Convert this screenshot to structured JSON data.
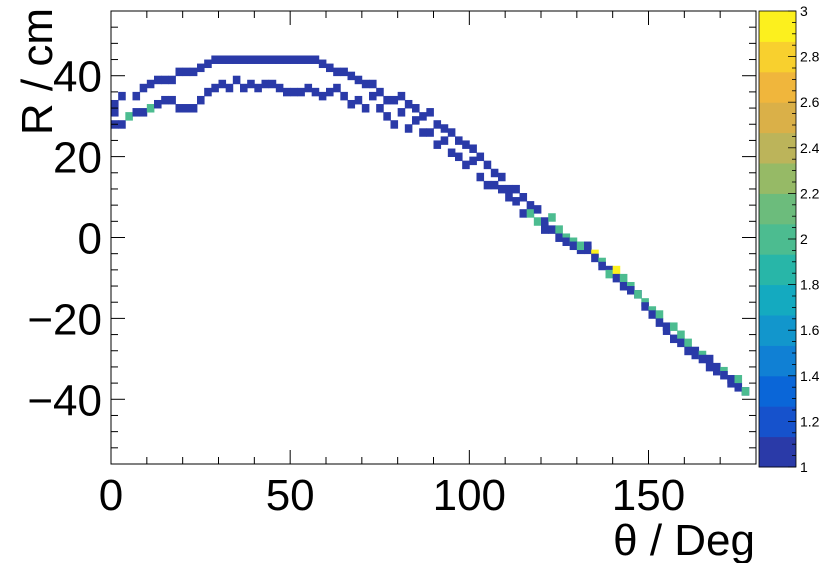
{
  "chart_data": {
    "type": "heatmap",
    "title": "",
    "xlabel": "θ / Deg",
    "ylabel": "R / cm",
    "xlim": [
      0,
      180
    ],
    "ylim": [
      -56,
      56
    ],
    "x_ticks": [
      0,
      50,
      100,
      150
    ],
    "y_ticks": [
      -40,
      -20,
      0,
      20,
      40
    ],
    "colorbar": {
      "range": [
        1,
        3
      ],
      "ticks": [
        "1",
        "1.2",
        "1.4",
        "1.6",
        "1.8",
        "2",
        "2.2",
        "2.4",
        "2.6",
        "2.8",
        "3"
      ],
      "palette": [
        "#2a3aa8",
        "#1652cc",
        "#0a66d8",
        "#1080d4",
        "#1296cc",
        "#14aac0",
        "#28b6a8",
        "#4cbc90",
        "#6cbc7c",
        "#96ba66",
        "#bcb45a",
        "#dab048",
        "#f0b63c",
        "#f8d02e",
        "#fcf01e"
      ]
    },
    "bins": [
      [
        1,
        33,
        1
      ],
      [
        1,
        31,
        1
      ],
      [
        1,
        28,
        1
      ],
      [
        3,
        28,
        1
      ],
      [
        3,
        35,
        1
      ],
      [
        5,
        30,
        2
      ],
      [
        7,
        35,
        1
      ],
      [
        7,
        31,
        1
      ],
      [
        9,
        37,
        1
      ],
      [
        9,
        31,
        1
      ],
      [
        11,
        32,
        2
      ],
      [
        11,
        38,
        1
      ],
      [
        13,
        39,
        1
      ],
      [
        13,
        33,
        1
      ],
      [
        15,
        39,
        1
      ],
      [
        15,
        34,
        1
      ],
      [
        17,
        39,
        1
      ],
      [
        17,
        34,
        1
      ],
      [
        19,
        41,
        1
      ],
      [
        19,
        32,
        1
      ],
      [
        21,
        41,
        1
      ],
      [
        21,
        32,
        1
      ],
      [
        23,
        41,
        1
      ],
      [
        23,
        32,
        1
      ],
      [
        25,
        42,
        1
      ],
      [
        25,
        34,
        1
      ],
      [
        27,
        43,
        1
      ],
      [
        27,
        36,
        1
      ],
      [
        29,
        44,
        1
      ],
      [
        29,
        37,
        1
      ],
      [
        31,
        44,
        1
      ],
      [
        31,
        38,
        1
      ],
      [
        33,
        44,
        1
      ],
      [
        33,
        37,
        1
      ],
      [
        35,
        44,
        1
      ],
      [
        35,
        39,
        1
      ],
      [
        37,
        44,
        1
      ],
      [
        37,
        37,
        1
      ],
      [
        39,
        44,
        1
      ],
      [
        39,
        38,
        1
      ],
      [
        41,
        44,
        1
      ],
      [
        41,
        37,
        1
      ],
      [
        43,
        44,
        1
      ],
      [
        43,
        38,
        1
      ],
      [
        45,
        44,
        1
      ],
      [
        45,
        38,
        1
      ],
      [
        47,
        44,
        1
      ],
      [
        47,
        37,
        1
      ],
      [
        49,
        44,
        1
      ],
      [
        49,
        36,
        1
      ],
      [
        51,
        44,
        1
      ],
      [
        51,
        36,
        1
      ],
      [
        53,
        44,
        1
      ],
      [
        53,
        36,
        1
      ],
      [
        55,
        44,
        1
      ],
      [
        55,
        37,
        1
      ],
      [
        57,
        44,
        1
      ],
      [
        57,
        36,
        1
      ],
      [
        59,
        43,
        1
      ],
      [
        59,
        35,
        1
      ],
      [
        61,
        42,
        1
      ],
      [
        61,
        36,
        1
      ],
      [
        63,
        41,
        1
      ],
      [
        63,
        37,
        1
      ],
      [
        65,
        41,
        1
      ],
      [
        65,
        35,
        1
      ],
      [
        67,
        40,
        1
      ],
      [
        67,
        33,
        1
      ],
      [
        69,
        39,
        1
      ],
      [
        69,
        34,
        1
      ],
      [
        71,
        38,
        1
      ],
      [
        71,
        32,
        1
      ],
      [
        73,
        38,
        1
      ],
      [
        73,
        35,
        1
      ],
      [
        75,
        36,
        1
      ],
      [
        75,
        32,
        1
      ],
      [
        77,
        34,
        1
      ],
      [
        77,
        30,
        1
      ],
      [
        79,
        34,
        1
      ],
      [
        79,
        28,
        1
      ],
      [
        81,
        35,
        1
      ],
      [
        81,
        31,
        1
      ],
      [
        83,
        33,
        1
      ],
      [
        83,
        27,
        1
      ],
      [
        85,
        32,
        1
      ],
      [
        85,
        29,
        1
      ],
      [
        87,
        30,
        1
      ],
      [
        87,
        26,
        1
      ],
      [
        89,
        31,
        1
      ],
      [
        89,
        26,
        1
      ],
      [
        91,
        28,
        1
      ],
      [
        91,
        23,
        1
      ],
      [
        93,
        27,
        1
      ],
      [
        93,
        24,
        1
      ],
      [
        95,
        26,
        1
      ],
      [
        95,
        21,
        1
      ],
      [
        97,
        24,
        1
      ],
      [
        97,
        20,
        1
      ],
      [
        99,
        23,
        1
      ],
      [
        99,
        18,
        1
      ],
      [
        101,
        22,
        1
      ],
      [
        101,
        19,
        1
      ],
      [
        103,
        20,
        1
      ],
      [
        103,
        15,
        1
      ],
      [
        105,
        18,
        1
      ],
      [
        105,
        13,
        1
      ],
      [
        107,
        16,
        1
      ],
      [
        107,
        13,
        1
      ],
      [
        109,
        15,
        1
      ],
      [
        109,
        12,
        1
      ],
      [
        111,
        12,
        1
      ],
      [
        111,
        10,
        1
      ],
      [
        113,
        12,
        1
      ],
      [
        113,
        9,
        1
      ],
      [
        115,
        10,
        1
      ],
      [
        115,
        6,
        1
      ],
      [
        117,
        8,
        1
      ],
      [
        117,
        6,
        2
      ],
      [
        119,
        7,
        1
      ],
      [
        119,
        4,
        2
      ],
      [
        121,
        4,
        1
      ],
      [
        121,
        2,
        1
      ],
      [
        123,
        5,
        2
      ],
      [
        123,
        2,
        1
      ],
      [
        125,
        2,
        2
      ],
      [
        125,
        0,
        1
      ],
      [
        127,
        0,
        2
      ],
      [
        127,
        -1,
        1
      ],
      [
        129,
        -1,
        2
      ],
      [
        129,
        -2,
        1
      ],
      [
        131,
        -3,
        1
      ],
      [
        131,
        -2,
        2
      ],
      [
        133,
        -2,
        1
      ],
      [
        133,
        -3,
        1
      ],
      [
        135,
        -4,
        3
      ],
      [
        135,
        -5,
        1
      ],
      [
        137,
        -6,
        2
      ],
      [
        137,
        -7,
        1
      ],
      [
        139,
        -8,
        1
      ],
      [
        139,
        -9,
        2
      ],
      [
        141,
        -8,
        3
      ],
      [
        141,
        -10,
        1
      ],
      [
        143,
        -10,
        2
      ],
      [
        143,
        -12,
        1
      ],
      [
        145,
        -12,
        2
      ],
      [
        145,
        -13,
        1
      ],
      [
        147,
        -14,
        1
      ],
      [
        147,
        -14,
        2
      ],
      [
        149,
        -16,
        2
      ],
      [
        149,
        -17,
        1
      ],
      [
        151,
        -18,
        2
      ],
      [
        151,
        -19,
        1
      ],
      [
        153,
        -19,
        2
      ],
      [
        153,
        -21,
        1
      ],
      [
        155,
        -22,
        1
      ],
      [
        155,
        -23,
        1
      ],
      [
        157,
        -22,
        2
      ],
      [
        157,
        -25,
        1
      ],
      [
        159,
        -24,
        2
      ],
      [
        159,
        -26,
        1
      ],
      [
        161,
        -26,
        2
      ],
      [
        161,
        -28,
        1
      ],
      [
        163,
        -28,
        1
      ],
      [
        163,
        -29,
        1
      ],
      [
        165,
        -29,
        2
      ],
      [
        165,
        -30,
        1
      ],
      [
        167,
        -30,
        1
      ],
      [
        167,
        -32,
        1
      ],
      [
        169,
        -32,
        1
      ],
      [
        169,
        -33,
        1
      ],
      [
        171,
        -33,
        2
      ],
      [
        171,
        -34,
        1
      ],
      [
        173,
        -35,
        1
      ],
      [
        173,
        -36,
        1
      ],
      [
        175,
        -35,
        2
      ],
      [
        175,
        -37,
        1
      ],
      [
        177,
        -38,
        1
      ],
      [
        177,
        -38,
        2
      ]
    ]
  }
}
